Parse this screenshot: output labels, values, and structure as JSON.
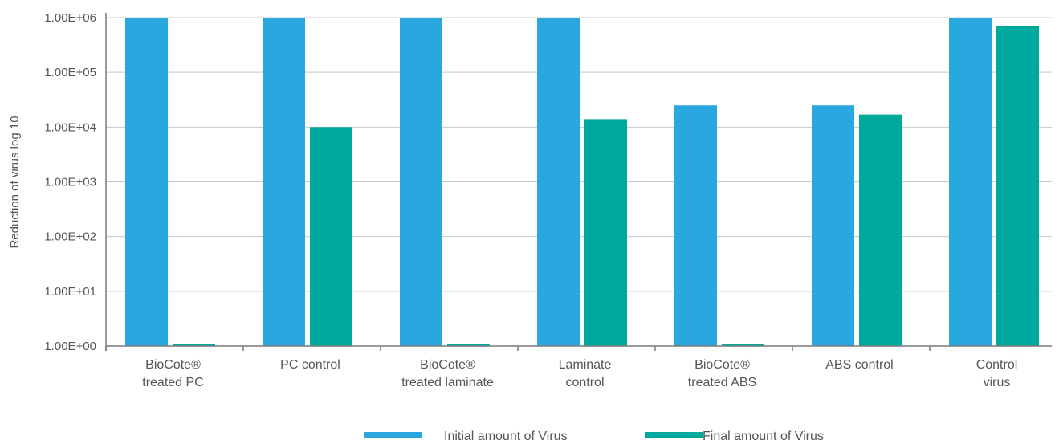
{
  "chart_data": {
    "type": "bar",
    "ylabel": "Reduction of virus log 10",
    "yscale": "log",
    "ylim": [
      1,
      1000000
    ],
    "yticks": [
      1,
      10,
      100,
      1000,
      10000,
      100000,
      1000000
    ],
    "ytick_labels": [
      "1.00E+00",
      "1.00E+01",
      "1.00E+02",
      "1.00E+03",
      "1.00E+04",
      "1.00E+05",
      "1.00E+06"
    ],
    "grid": true,
    "legend": "bottom-center",
    "categories": [
      [
        "BioCote®",
        "treated PC"
      ],
      [
        "PC control"
      ],
      [
        "BioCote®",
        "treated laminate"
      ],
      [
        "Laminate",
        "control"
      ],
      [
        "BioCote®",
        "treated ABS"
      ],
      [
        "ABS control"
      ],
      [
        "Control",
        "virus"
      ]
    ],
    "series": [
      {
        "name": "Initial amount of Virus",
        "color": "#29a8e0",
        "values": [
          1000000,
          1000000,
          1000000,
          1000000,
          25000,
          25000,
          1000000
        ]
      },
      {
        "name": "Final amount of Virus",
        "color": "#00a99d",
        "values": [
          1.1,
          10000,
          1.1,
          14000,
          1.1,
          17000,
          700000
        ]
      }
    ]
  }
}
